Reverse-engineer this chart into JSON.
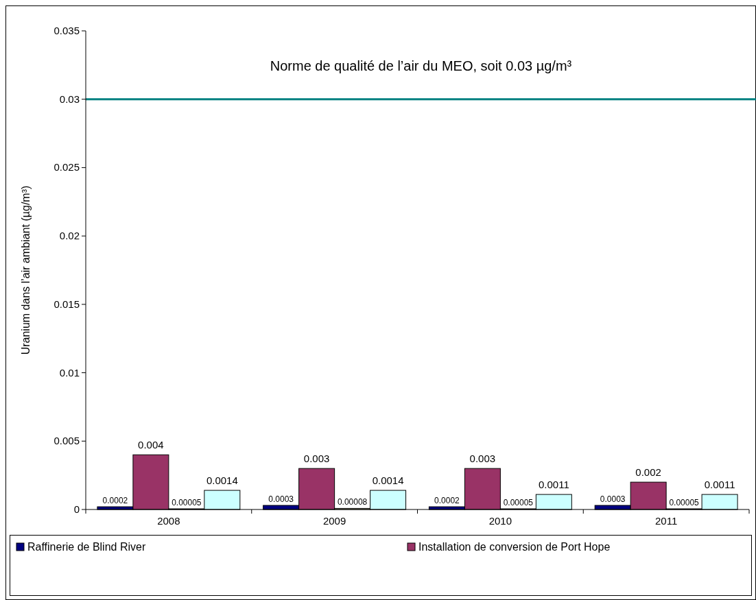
{
  "chart_data": {
    "type": "bar",
    "ylabel": "Uranium dans l’air ambiant (µg/m³)",
    "categories": [
      "2008",
      "2009",
      "2010",
      "2011"
    ],
    "series": [
      {
        "name": "Raffinerie de Blind River",
        "color": "#000080",
        "values": [
          0.0002,
          0.0003,
          0.0002,
          0.0003
        ]
      },
      {
        "name": "Installation de conversion de Port Hope",
        "color": "#993366",
        "values": [
          0.004,
          0.003,
          0.003,
          0.002
        ]
      },
      {
        "color": "#ffffcc",
        "values": [
          5e-05,
          8e-05,
          5e-05,
          5e-05
        ],
        "value_labels": [
          "0.00005",
          "0.00008",
          "0.00005",
          "0.00005"
        ]
      },
      {
        "color": "#ccffff",
        "values": [
          0.0014,
          0.0014,
          0.0011,
          0.0011
        ]
      }
    ],
    "ylim": [
      0,
      0.035
    ],
    "yticks": [
      0,
      0.005,
      0.01,
      0.015,
      0.02,
      0.025,
      0.03,
      0.035
    ],
    "ref_lines": [
      {
        "axis": "y",
        "value": 0.03,
        "label": "Norme de qualité de l’air du MEO, soit 0.03 µg/m³",
        "color": "#008080"
      }
    ],
    "data_labels": true,
    "legend": "bottom",
    "grid": false
  }
}
